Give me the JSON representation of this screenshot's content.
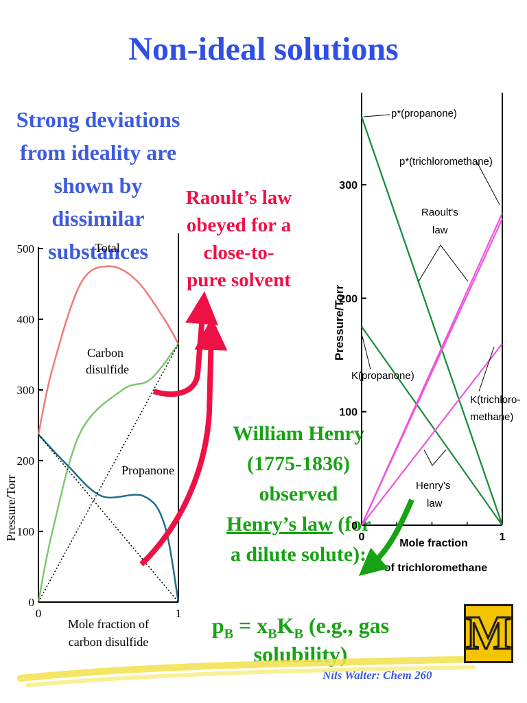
{
  "slide": {
    "title": "Non-ideal solutions",
    "intro": "Strong deviations from ideality are shown by dissimilar substances",
    "raoult_note": "Raoult’s law obeyed for a close-to-pure solvent",
    "henry": {
      "name": "William Henry",
      "years": "(1775-1836)",
      "observed": "observed",
      "law": "Henry’s law",
      "for": " (for",
      "dilute": "a dilute solute):"
    },
    "formula": {
      "p": "p",
      "sub_b1": "B",
      "eq": " = x",
      "sub_b2": "B",
      "k": "K",
      "sub_b3": "B",
      "rest": " (e.g., gas solubility)"
    },
    "footer": "Nils Walter: Chem 260",
    "logo_letter": "M"
  },
  "chart_data": [
    {
      "type": "line",
      "ylabel": "Pressure/Torr",
      "xlabel": "Mole fraction of carbon disulfide",
      "ylim": [
        0,
        500
      ],
      "xlim": [
        0,
        1
      ],
      "y_ticks": [
        "0",
        "100",
        "200",
        "300",
        "400",
        "500"
      ],
      "x_ticks": [
        "0",
        "1"
      ],
      "series": [
        {
          "name": "Total",
          "color": "#f07a78",
          "x": [
            0,
            0.1,
            0.3,
            0.5,
            0.7,
            0.9,
            1
          ],
          "y": [
            237,
            330,
            450,
            475,
            455,
            400,
            365
          ]
        },
        {
          "name": "Carbon disulfide",
          "color": "#7cc86e",
          "x": [
            0,
            0.1,
            0.3,
            0.6,
            0.8,
            1
          ],
          "y": [
            0,
            100,
            240,
            300,
            315,
            365
          ]
        },
        {
          "name": "Propanone",
          "color": "#1e6e8c",
          "x": [
            0,
            0.2,
            0.45,
            0.75,
            0.9,
            1
          ],
          "y": [
            237,
            195,
            150,
            150,
            110,
            0
          ]
        },
        {
          "name": "",
          "color": "#000000",
          "x": [
            0,
            1
          ],
          "y": [
            0,
            365
          ]
        },
        {
          "name": "",
          "color": "#000000",
          "x": [
            0,
            1
          ],
          "y": [
            237,
            0
          ]
        }
      ],
      "series_labels": {
        "total": "Total",
        "carbon1": "Carbon",
        "carbon2": "disulfide",
        "propanone": "Propanone"
      },
      "xlabel_lines": [
        "Mole fraction of",
        "carbon disulfide"
      ]
    },
    {
      "type": "line",
      "ylabel": "Pressure/Torr",
      "xlabel": "Mole fraction of trichloromethane",
      "ylim": [
        0,
        360
      ],
      "xlim": [
        0,
        1
      ],
      "y_ticks": [
        "0",
        "100",
        "200",
        "300"
      ],
      "x_ticks": [
        "0",
        "1"
      ],
      "series": [
        {
          "name": "p*(propanone)",
          "color": "#22dd99",
          "x": [
            0,
            1
          ],
          "y": [
            360,
            0
          ]
        },
        {
          "name": "",
          "color": "#1f8b3a",
          "x": [
            0,
            1
          ],
          "y": [
            360,
            0
          ]
        },
        {
          "name": "K(propanone)",
          "color": "#1f8b3a",
          "x": [
            0,
            1
          ],
          "y": [
            175,
            0
          ]
        },
        {
          "name": "p*(trichloromethane)",
          "color": "#ee55dd",
          "x": [
            0,
            1
          ],
          "y": [
            0,
            275
          ]
        },
        {
          "name": "",
          "color": "#ee55dd",
          "x": [
            0,
            1
          ],
          "y": [
            0,
            270
          ]
        },
        {
          "name": "K(trichloromethane)",
          "color": "#ee55dd",
          "x": [
            0,
            1
          ],
          "y": [
            0,
            160
          ]
        }
      ],
      "labels": {
        "p_prop": "p*(propanone)",
        "p_tcm": "p*(trichloromethane)",
        "raoult1": "Raoult's",
        "raoult2": "law",
        "k_prop": "K(propanone)",
        "k_tcm1": "K(trichloro-",
        "k_tcm2": "methane)",
        "henry1": "Henry's",
        "henry2": "law"
      },
      "xlabel_lines": [
        "Mole fraction",
        "of trichloromethane"
      ]
    }
  ],
  "colors": {
    "title": "#2f4fe6",
    "red": "#ee1146",
    "green": "#17a314"
  }
}
